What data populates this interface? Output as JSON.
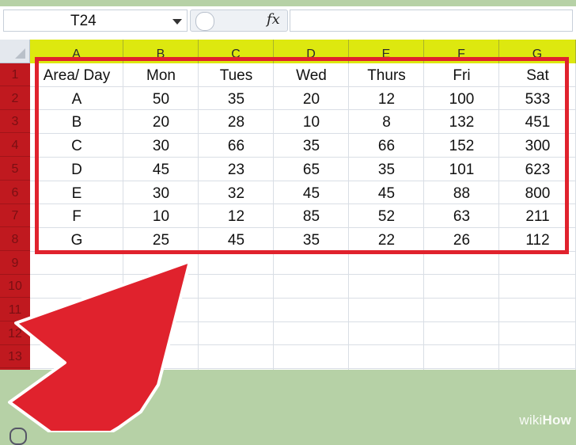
{
  "name_box": {
    "value": "T24"
  },
  "formula_bar": {
    "fx_symbol": "fx"
  },
  "columns": [
    "A",
    "B",
    "C",
    "D",
    "E",
    "F",
    "G"
  ],
  "rows": [
    "1",
    "2",
    "3",
    "4",
    "5",
    "6",
    "7",
    "8",
    "9",
    "10",
    "11",
    "12",
    "13"
  ],
  "table": {
    "header": [
      "Area/ Day",
      "Mon",
      "Tues",
      "Wed",
      "Thurs",
      "Fri",
      "Sat"
    ],
    "data": [
      [
        "A",
        "50",
        "35",
        "20",
        "12",
        "100",
        "533"
      ],
      [
        "B",
        "20",
        "28",
        "10",
        "8",
        "132",
        "451"
      ],
      [
        "C",
        "30",
        "66",
        "35",
        "66",
        "152",
        "300"
      ],
      [
        "D",
        "45",
        "23",
        "65",
        "35",
        "101",
        "623"
      ],
      [
        "E",
        "30",
        "32",
        "45",
        "45",
        "88",
        "800"
      ],
      [
        "F",
        "10",
        "12",
        "85",
        "52",
        "63",
        "211"
      ],
      [
        "G",
        "25",
        "45",
        "35",
        "22",
        "26",
        "112"
      ]
    ]
  },
  "watermark": {
    "part1": "wiki",
    "part2": "How"
  },
  "colors": {
    "column_header_highlight": "#dde80f",
    "row_header_highlight": "#c0191f",
    "selection_outline": "#e0222d",
    "arrow": "#e0222d"
  }
}
